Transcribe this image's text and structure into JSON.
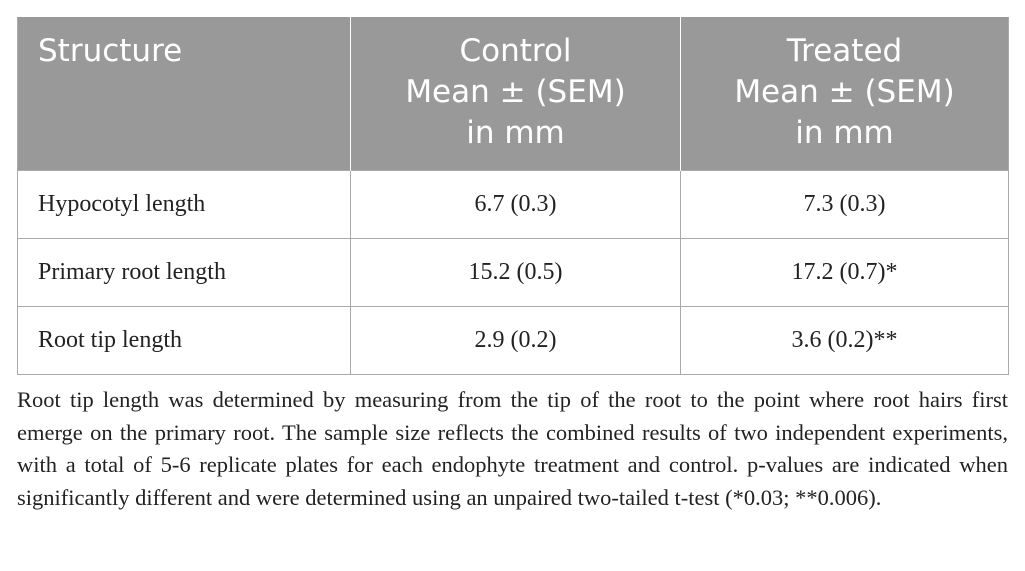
{
  "table": {
    "header": [
      [
        "Structure"
      ],
      [
        "Control",
        "Mean ± (SEM)",
        "in mm"
      ],
      [
        "Treated",
        "Mean ± (SEM)",
        "in mm"
      ]
    ],
    "rows": [
      [
        "Hypocotyl length",
        "6.7 (0.3)",
        "7.3 (0.3)"
      ],
      [
        "Primary root length",
        "15.2 (0.5)",
        "17.2 (0.7)*"
      ],
      [
        "Root tip length",
        "2.9 (0.2)",
        "3.6 (0.2)**"
      ]
    ]
  },
  "caption": "Root tip length was determined by measuring from the tip of the root to the point where root hairs first emerge on the primary root. The sample size reflects the combined results of two independent experiments, with a total of 5-6 replicate plates for each endophyte treatment and control. p-values are indicated when significantly different and were determined using an unpaired two-tailed t-test (*0.03; **0.006)."
}
